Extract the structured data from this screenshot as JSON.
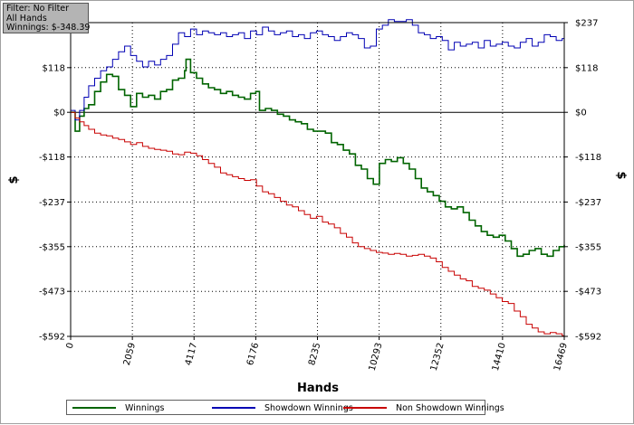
{
  "info_box": {
    "line1": "Filter: No Filter",
    "line2": "All Hands",
    "line3": "Winnings: $-348.39"
  },
  "chart_data": {
    "type": "line",
    "xlabel": "Hands",
    "ylabel_left": "$",
    "ylabel_right": "$",
    "xlim": [
      0,
      16469
    ],
    "ylim": [
      -592,
      237
    ],
    "x_ticks": [
      0,
      2059,
      4117,
      6176,
      8235,
      10293,
      12352,
      14410,
      16469
    ],
    "x_tick_labels": [
      "0",
      "2059",
      "4117",
      "6176",
      "8235",
      "10293",
      "12352",
      "14410",
      "16469"
    ],
    "y_ticks": [
      237,
      118,
      0,
      -118,
      -237,
      -355,
      -473,
      -592
    ],
    "y_tick_labels": [
      "$237",
      "$118",
      "$0",
      "-$118",
      "-$237",
      "-$355",
      "-$473",
      "-$592"
    ],
    "grid": true,
    "legend_position": "bottom",
    "series": [
      {
        "name": "Winnings",
        "color": "#006400",
        "x": [
          0,
          150,
          300,
          450,
          600,
          800,
          1000,
          1200,
          1400,
          1600,
          1800,
          2000,
          2200,
          2400,
          2600,
          2800,
          3000,
          3200,
          3400,
          3600,
          3800,
          3850,
          4000,
          4200,
          4400,
          4600,
          4800,
          5000,
          5200,
          5400,
          5600,
          5800,
          6000,
          6176,
          6300,
          6500,
          6700,
          6900,
          7100,
          7300,
          7500,
          7700,
          7900,
          8100,
          8300,
          8500,
          8700,
          8900,
          9100,
          9300,
          9500,
          9700,
          9900,
          10100,
          10300,
          10500,
          10700,
          10900,
          11100,
          11300,
          11500,
          11700,
          11900,
          12100,
          12300,
          12500,
          12700,
          12900,
          13100,
          13300,
          13500,
          13700,
          13900,
          14100,
          14300,
          14500,
          14700,
          14900,
          15100,
          15300,
          15500,
          15700,
          15900,
          16100,
          16300,
          16469
        ],
        "y": [
          0,
          -50,
          -10,
          10,
          20,
          55,
          80,
          100,
          95,
          60,
          45,
          15,
          50,
          40,
          45,
          35,
          55,
          60,
          85,
          90,
          110,
          140,
          105,
          90,
          75,
          65,
          60,
          50,
          55,
          45,
          40,
          35,
          50,
          55,
          5,
          10,
          5,
          -5,
          -10,
          -20,
          -25,
          -30,
          -45,
          -50,
          -50,
          -55,
          -80,
          -85,
          -100,
          -110,
          -140,
          -150,
          -175,
          -190,
          -135,
          -125,
          -130,
          -120,
          -135,
          -150,
          -175,
          -200,
          -210,
          -220,
          -235,
          -250,
          -255,
          -250,
          -265,
          -285,
          -300,
          -315,
          -325,
          -330,
          -325,
          -340,
          -360,
          -380,
          -375,
          -365,
          -360,
          -375,
          -380,
          -365,
          -355,
          -350
        ]
      },
      {
        "name": "Showdown Winnings",
        "color": "#0000b4",
        "x": [
          0,
          150,
          300,
          450,
          600,
          800,
          1000,
          1200,
          1400,
          1600,
          1800,
          2000,
          2200,
          2400,
          2600,
          2800,
          3000,
          3200,
          3400,
          3600,
          3800,
          4000,
          4200,
          4400,
          4600,
          4800,
          5000,
          5200,
          5400,
          5600,
          5800,
          6000,
          6200,
          6400,
          6600,
          6800,
          7000,
          7200,
          7400,
          7600,
          7800,
          8000,
          8200,
          8400,
          8600,
          8800,
          9000,
          9200,
          9400,
          9600,
          9800,
          10000,
          10200,
          10400,
          10600,
          10800,
          11000,
          11200,
          11400,
          11600,
          11800,
          12000,
          12200,
          12400,
          12600,
          12800,
          13000,
          13200,
          13400,
          13600,
          13800,
          14000,
          14200,
          14400,
          14600,
          14800,
          15000,
          15200,
          15400,
          15600,
          15800,
          16000,
          16200,
          16400,
          16469
        ],
        "y": [
          5,
          -20,
          5,
          40,
          70,
          90,
          110,
          120,
          140,
          160,
          175,
          150,
          135,
          120,
          135,
          125,
          140,
          150,
          180,
          210,
          200,
          220,
          205,
          215,
          210,
          205,
          210,
          200,
          205,
          210,
          195,
          215,
          205,
          225,
          215,
          205,
          210,
          215,
          200,
          205,
          195,
          210,
          215,
          205,
          200,
          190,
          200,
          210,
          205,
          195,
          170,
          175,
          220,
          230,
          245,
          240,
          240,
          245,
          230,
          210,
          205,
          195,
          200,
          190,
          165,
          185,
          175,
          180,
          185,
          170,
          190,
          175,
          180,
          185,
          175,
          170,
          185,
          195,
          175,
          185,
          205,
          200,
          190,
          195,
          215
        ]
      },
      {
        "name": "Non Showdown Winnings",
        "color": "#c80000",
        "x": [
          0,
          150,
          300,
          450,
          600,
          800,
          1000,
          1200,
          1400,
          1600,
          1800,
          2000,
          2200,
          2400,
          2600,
          2800,
          3000,
          3200,
          3400,
          3600,
          3800,
          4000,
          4200,
          4400,
          4600,
          4800,
          5000,
          5200,
          5400,
          5600,
          5800,
          6000,
          6200,
          6400,
          6600,
          6800,
          7000,
          7200,
          7400,
          7600,
          7800,
          8000,
          8200,
          8400,
          8600,
          8800,
          9000,
          9200,
          9400,
          9600,
          9800,
          10000,
          10200,
          10400,
          10600,
          10800,
          11000,
          11200,
          11400,
          11600,
          11800,
          12000,
          12200,
          12400,
          12600,
          12800,
          13000,
          13200,
          13400,
          13600,
          13800,
          14000,
          14200,
          14400,
          14600,
          14800,
          15000,
          15200,
          15400,
          15600,
          15800,
          16000,
          16200,
          16400,
          16469
        ],
        "y": [
          0,
          -15,
          -25,
          -35,
          -45,
          -55,
          -60,
          -62,
          -68,
          -72,
          -78,
          -85,
          -80,
          -90,
          -95,
          -98,
          -100,
          -103,
          -110,
          -112,
          -105,
          -108,
          -115,
          -125,
          -135,
          -145,
          -160,
          -165,
          -170,
          -175,
          -180,
          -178,
          -195,
          -210,
          -215,
          -225,
          -235,
          -245,
          -250,
          -260,
          -270,
          -280,
          -275,
          -290,
          -295,
          -305,
          -320,
          -330,
          -345,
          -355,
          -360,
          -365,
          -370,
          -372,
          -375,
          -373,
          -375,
          -380,
          -378,
          -375,
          -380,
          -385,
          -395,
          -410,
          -420,
          -430,
          -440,
          -445,
          -460,
          -465,
          -470,
          -480,
          -490,
          -500,
          -505,
          -525,
          -540,
          -560,
          -570,
          -580,
          -585,
          -582,
          -585,
          -590,
          -588
        ]
      }
    ]
  }
}
